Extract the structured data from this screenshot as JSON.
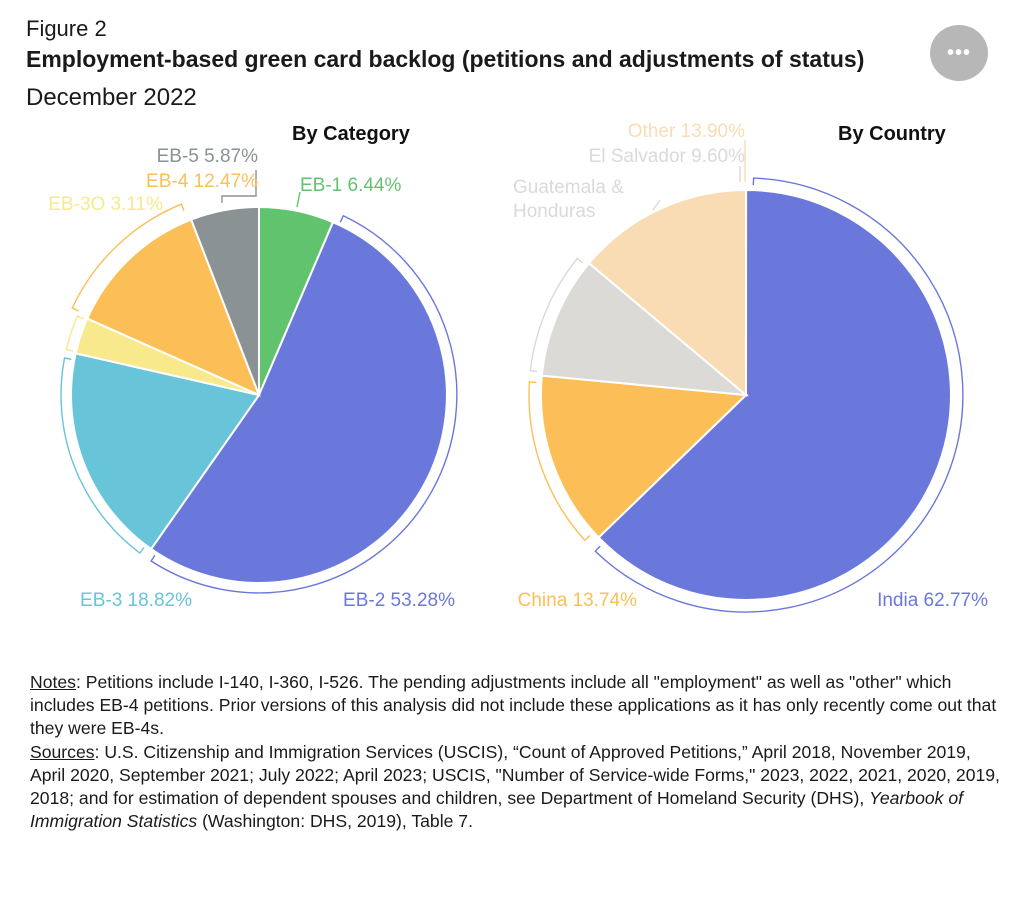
{
  "figure": {
    "number": "Figure 2",
    "title": "Employment-based green card backlog (petitions and adjustments of status)",
    "subtitle": "December 2022",
    "menu_icon": "more-horizontal-icon"
  },
  "chart_data": [
    {
      "type": "pie",
      "title": "By Category",
      "slices": [
        {
          "label": "EB-1",
          "value": 6.44,
          "display": "EB-1 6.44%",
          "color": "#62c36f"
        },
        {
          "label": "EB-2",
          "value": 53.28,
          "display": "EB-2 53.28%",
          "color": "#6b78db"
        },
        {
          "label": "EB-3",
          "value": 18.82,
          "display": "EB-3 18.82%",
          "color": "#68c4d8"
        },
        {
          "label": "EB-3O",
          "value": 3.11,
          "display": "EB-3O 3.11%",
          "color": "#f7e98c"
        },
        {
          "label": "EB-4",
          "value": 12.47,
          "display": "EB-4 12.47%",
          "color": "#fcbf58"
        },
        {
          "label": "EB-5",
          "value": 5.87,
          "display": "EB-5 5.87%",
          "color": "#8a9294"
        }
      ]
    },
    {
      "type": "pie",
      "title": "By Country",
      "slices": [
        {
          "label": "India",
          "value": 62.77,
          "display": "India 62.77%",
          "color": "#6b78db"
        },
        {
          "label": "China",
          "value": 13.74,
          "display": "China 13.74%",
          "color": "#fcbf58"
        },
        {
          "label": "Guatemala & Honduras",
          "value": null,
          "display": "Guatemala & Honduras",
          "color": "#dcdad7"
        },
        {
          "label": "El Salvador",
          "value": 9.6,
          "display": "El Salvador 9.60%",
          "color": "#dcdad7"
        },
        {
          "label": "Other",
          "value": 13.9,
          "display": "Other 13.90%",
          "color": "#fadcb4"
        }
      ]
    }
  ],
  "notes": {
    "notes_label": "Notes",
    "notes_text": ": Petitions include I-140, I-360, I-526. The pending adjustments include all \"employment\" as well as \"other\" which includes EB-4 petitions. Prior versions of this analysis did not include these applications as it has only recently come out that they were EB-4s.",
    "sources_label": "Sources",
    "sources_text_1": ": U.S. Citizenship and Immigration Services (USCIS), “Count of Approved Petitions,” April 2018, November 2019, April 2020, September 2021; July 2022; April 2023; USCIS, \"Number of Service-wide Forms,\" 2023, 2022, 2021, 2020, 2019, 2018; and for estimation of dependent spouses and children, see Department of Homeland Security (DHS), ",
    "sources_italic": "Yearbook of Immigration Statistics",
    "sources_text_2": " (Washington: DHS, 2019), Table 7."
  }
}
